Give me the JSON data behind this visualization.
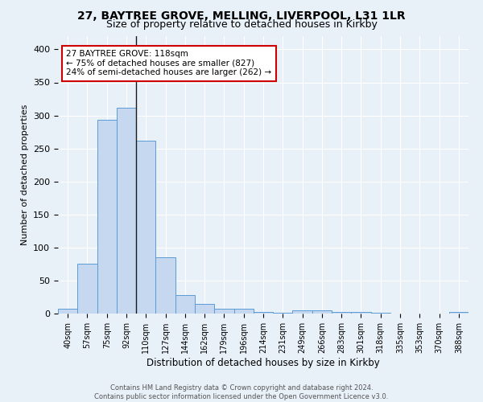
{
  "title1": "27, BAYTREE GROVE, MELLING, LIVERPOOL, L31 1LR",
  "title2": "Size of property relative to detached houses in Kirkby",
  "xlabel": "Distribution of detached houses by size in Kirkby",
  "ylabel": "Number of detached properties",
  "footnote1": "Contains HM Land Registry data © Crown copyright and database right 2024.",
  "footnote2": "Contains public sector information licensed under the Open Government Licence v3.0.",
  "bar_labels": [
    "40sqm",
    "57sqm",
    "75sqm",
    "92sqm",
    "110sqm",
    "127sqm",
    "144sqm",
    "162sqm",
    "179sqm",
    "196sqm",
    "214sqm",
    "231sqm",
    "249sqm",
    "266sqm",
    "283sqm",
    "301sqm",
    "318sqm",
    "335sqm",
    "353sqm",
    "370sqm",
    "388sqm"
  ],
  "bar_values": [
    7,
    75,
    293,
    312,
    262,
    85,
    28,
    15,
    7,
    7,
    3,
    1,
    5,
    5,
    3,
    3,
    1,
    0,
    0,
    0,
    3
  ],
  "bar_color": "#c5d8f0",
  "bar_edge_color": "#5b9bd5",
  "vline_x_index": 4,
  "vline_color": "#1a1a1a",
  "annotation_text": "27 BAYTREE GROVE: 118sqm\n← 75% of detached houses are smaller (827)\n24% of semi-detached houses are larger (262) →",
  "annotation_box_color": "white",
  "annotation_box_edge_color": "#cc0000",
  "ylim": [
    0,
    420
  ],
  "yticks": [
    0,
    50,
    100,
    150,
    200,
    250,
    300,
    350,
    400
  ],
  "bg_color": "#e8f0f8",
  "grid_color": "white",
  "title_fontsize": 10,
  "subtitle_fontsize": 9
}
